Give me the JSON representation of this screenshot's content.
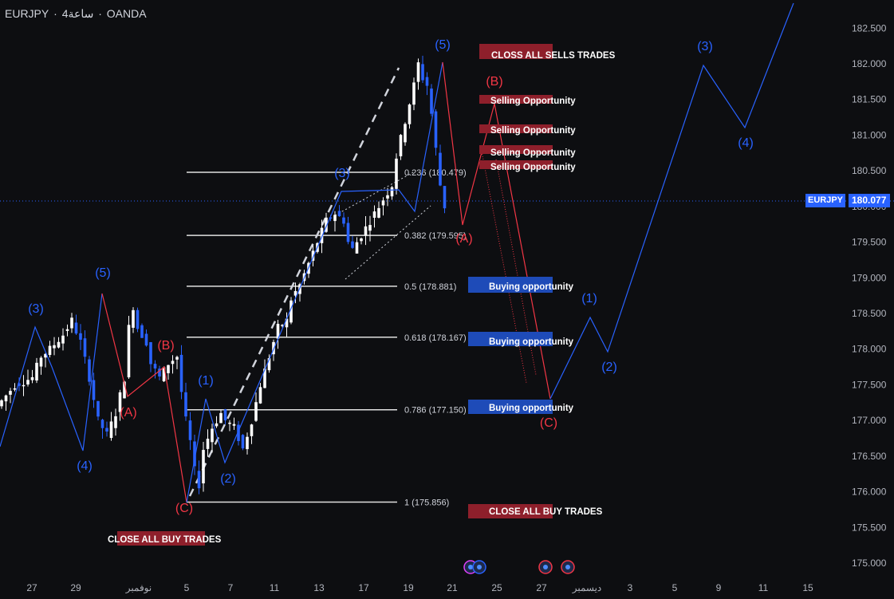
{
  "header": {
    "symbol": "EURJPY",
    "separator": "·",
    "timeframe": "4ساعة",
    "broker": "OANDA"
  },
  "current_price": {
    "symbol": "EURJPY",
    "value": "180.077"
  },
  "colors": {
    "background": "#0d0e11",
    "bull": "#ffffff",
    "bear": "#2962ff",
    "wave_blue": "#2962ff",
    "wave_red": "#f23645",
    "label_red_bg": "#8e1f2b",
    "label_blue_bg": "#1e4bb8",
    "fib": "#e0e0e0"
  },
  "chart_data": {
    "type": "candlestick",
    "title": "",
    "xlabel": "",
    "ylabel": "",
    "ylim": [
      174.9,
      182.85
    ],
    "y_ticks": [
      "182.500",
      "182.000",
      "181.500",
      "181.000",
      "180.500",
      "180.000",
      "179.500",
      "179.000",
      "178.500",
      "178.000",
      "177.500",
      "177.000",
      "176.500",
      "176.000",
      "175.500",
      "175.000"
    ],
    "x_ticks": [
      "27",
      "29",
      "نوفمبر",
      "5",
      "7",
      "11",
      "13",
      "17",
      "19",
      "21",
      "25",
      "27",
      "ديسمبر",
      "3",
      "5",
      "9",
      "11",
      "15"
    ],
    "price_path": [
      [
        0,
        177.2
      ],
      [
        4,
        177.5
      ],
      [
        8,
        177.6
      ],
      [
        10,
        177.9
      ],
      [
        12,
        178.0
      ],
      [
        15,
        178.2
      ],
      [
        17,
        178.4
      ],
      [
        19,
        178.1
      ],
      [
        21,
        177.6
      ],
      [
        23,
        177.0
      ],
      [
        25,
        176.8
      ],
      [
        27,
        177.1
      ],
      [
        29,
        177.6
      ],
      [
        30,
        178.3
      ],
      [
        31,
        178.6
      ],
      [
        32,
        178.3
      ],
      [
        34,
        178.1
      ],
      [
        35,
        177.8
      ],
      [
        37,
        177.6
      ],
      [
        39,
        177.8
      ],
      [
        41,
        177.9
      ],
      [
        42,
        177.4
      ],
      [
        43,
        177.0
      ],
      [
        44,
        176.7
      ],
      [
        45,
        176.3
      ],
      [
        46,
        176.1
      ],
      [
        47,
        176.6
      ],
      [
        49,
        176.9
      ],
      [
        51,
        177.1
      ],
      [
        52,
        177.0
      ],
      [
        54,
        176.9
      ],
      [
        56,
        176.6
      ],
      [
        58,
        177.0
      ],
      [
        60,
        177.5
      ],
      [
        62,
        177.9
      ],
      [
        64,
        178.3
      ],
      [
        66,
        178.4
      ],
      [
        67,
        178.7
      ],
      [
        69,
        178.9
      ],
      [
        71,
        179.2
      ],
      [
        73,
        179.5
      ],
      [
        75,
        179.8
      ],
      [
        77,
        179.9
      ],
      [
        79,
        179.8
      ],
      [
        80,
        179.5
      ],
      [
        81,
        179.4
      ],
      [
        83,
        179.6
      ],
      [
        85,
        179.8
      ],
      [
        87,
        180.0
      ],
      [
        89,
        180.2
      ],
      [
        90,
        180.3
      ],
      [
        91,
        180.7
      ],
      [
        93,
        181.2
      ],
      [
        95,
        181.7
      ],
      [
        96,
        182.0
      ],
      [
        97,
        181.8
      ],
      [
        98,
        181.7
      ],
      [
        99,
        181.3
      ],
      [
        100,
        180.8
      ],
      [
        101,
        180.3
      ],
      [
        102,
        180.0
      ]
    ],
    "fib_levels": [
      {
        "label": "0.236 (180.479)",
        "value": 180.479
      },
      {
        "label": "0.382 (179.595)",
        "value": 179.595
      },
      {
        "label": "0.5 (178.881)",
        "value": 178.881
      },
      {
        "label": "0.618 (178.167)",
        "value": 178.167
      },
      {
        "label": "0.786 (177.150)",
        "value": 177.15
      },
      {
        "label": "1 (175.856)",
        "value": 175.856
      }
    ],
    "zones": [
      {
        "label": "CLOSS ALL SELLS TRADES",
        "type": "red",
        "value": 182.15
      },
      {
        "label": "Selling Opportunity",
        "type": "red",
        "value": 181.5
      },
      {
        "label": "Selling Opportunity",
        "type": "red",
        "value": 181.08
      },
      {
        "label": "Selling Opportunity",
        "type": "red",
        "value": 180.78
      },
      {
        "label": "Selling Opportunity",
        "type": "red",
        "value": 180.58
      },
      {
        "label": "Buying opportunity",
        "type": "blue",
        "value": 178.95
      },
      {
        "label": "Buying opportunity",
        "type": "blue",
        "value": 178.15
      },
      {
        "label": "Buying opportunity",
        "type": "blue",
        "value": 177.18
      },
      {
        "label": "CLOSE ALL BUY TRADES",
        "type": "red",
        "value": 175.7
      },
      {
        "label": "CLOSE ALL BUY TRADES",
        "type": "red",
        "value": 175.4
      }
    ],
    "wave_labels": [
      {
        "text": "(3)",
        "color": "blue"
      },
      {
        "text": "(5)",
        "color": "blue"
      },
      {
        "text": "(4)",
        "color": "blue"
      },
      {
        "text": "(A)",
        "color": "red"
      },
      {
        "text": "(B)",
        "color": "red"
      },
      {
        "text": "(C)",
        "color": "red"
      },
      {
        "text": "(1)",
        "color": "blue"
      },
      {
        "text": "(2)",
        "color": "blue"
      },
      {
        "text": "(3)",
        "color": "blue"
      },
      {
        "text": "(5)",
        "color": "blue"
      },
      {
        "text": "(A)",
        "color": "red"
      },
      {
        "text": "(B)",
        "color": "red"
      },
      {
        "text": "(C)",
        "color": "red"
      },
      {
        "text": "(1)",
        "color": "blue"
      },
      {
        "text": "(2)",
        "color": "blue"
      },
      {
        "text": "(3)",
        "color": "blue"
      },
      {
        "text": "(4)",
        "color": "blue"
      }
    ]
  }
}
